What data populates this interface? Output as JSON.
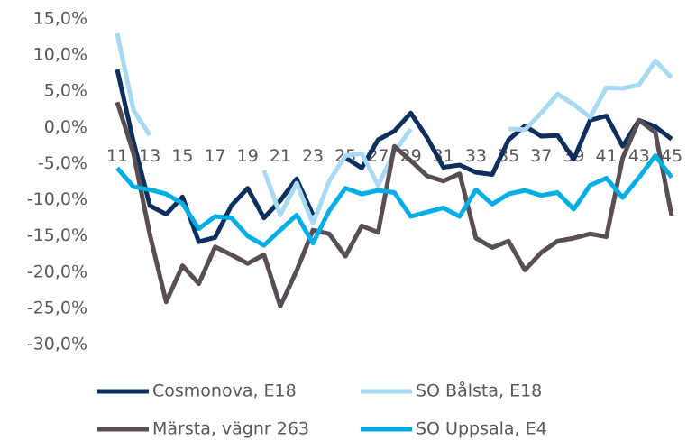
{
  "chart_data": {
    "type": "line",
    "categories": [
      "11",
      null,
      "13",
      null,
      "15",
      null,
      "17",
      null,
      "19",
      null,
      "21",
      null,
      "23",
      null,
      "25",
      null,
      "27",
      null,
      "29",
      null,
      "31",
      null,
      "33",
      null,
      "35",
      null,
      "37",
      null,
      "39",
      null,
      "41",
      null,
      "43",
      null,
      "45"
    ],
    "series": [
      {
        "name": "Cosmonova, E18",
        "color": "#0d2f5e",
        "values": [
          8.0,
          -2.0,
          -10.8,
          -12.0,
          -9.6,
          -15.8,
          -15.2,
          -10.8,
          -8.4,
          -12.5,
          -10.1,
          -7.1,
          -12.1,
          null,
          -4.2,
          -5.6,
          -1.7,
          -0.5,
          2.0,
          -1.4,
          -5.5,
          -5.2,
          -6.2,
          -6.5,
          -1.7,
          0.2,
          -1.2,
          -1.1,
          -4.4,
          1.0,
          1.6,
          -2.6,
          1.0,
          0.1,
          -1.6
        ]
      },
      {
        "name": "SO Bålsta, E18",
        "color": "#a8daf2",
        "values": [
          13.0,
          2.4,
          -1.1,
          null,
          null,
          null,
          null,
          null,
          null,
          -5.9,
          -12.1,
          -7.7,
          -13.3,
          -7.4,
          -3.9,
          -3.6,
          -8.0,
          -3.4,
          -0.2,
          null,
          null,
          null,
          null,
          null,
          -0.2,
          -0.3,
          2.0,
          4.6,
          3.2,
          1.4,
          5.5,
          5.4,
          5.9,
          9.2,
          6.9
        ]
      },
      {
        "name": "Märsta, vägnr 263",
        "color": "#594e56",
        "values": [
          3.5,
          -3.6,
          -14.8,
          -24.1,
          -19.1,
          -21.6,
          -16.5,
          -17.6,
          -18.8,
          -17.6,
          -24.7,
          -19.8,
          -14.2,
          -14.7,
          -17.8,
          -13.6,
          -14.5,
          -2.6,
          -4.6,
          -6.7,
          -7.4,
          -6.4,
          -15.3,
          -16.6,
          -15.7,
          -19.7,
          -17.3,
          -15.7,
          -15.3,
          -14.7,
          -15.1,
          -4.2,
          1.0,
          -0.7,
          -12.2
        ]
      },
      {
        "name": "SO Uppsala, E4",
        "color": "#00aee6",
        "values": [
          -5.6,
          -8.2,
          -8.6,
          -9.2,
          -10.5,
          -14.0,
          -12.3,
          -12.5,
          -15.0,
          -16.3,
          -14.2,
          -12.1,
          -16.0,
          -11.5,
          -8.4,
          -9.2,
          -8.7,
          -9.0,
          -12.3,
          -11.7,
          -11.1,
          -12.3,
          -8.6,
          -10.6,
          -9.2,
          -8.7,
          -9.4,
          -9.0,
          -11.3,
          -8.0,
          -7.0,
          -9.7,
          -6.9,
          -3.9,
          -6.9
        ]
      }
    ],
    "ylim": [
      -30,
      15
    ],
    "yticks": [
      {
        "value": -30,
        "label": "-30,0%"
      },
      {
        "value": -25,
        "label": "-25,0%"
      },
      {
        "value": -20,
        "label": "-20,0%"
      },
      {
        "value": -15,
        "label": "-15,0%"
      },
      {
        "value": -10,
        "label": "-10,0%"
      },
      {
        "value": -5,
        "label": "-5,0%"
      },
      {
        "value": 0,
        "label": "0,0%"
      },
      {
        "value": 5,
        "label": "5,0%"
      },
      {
        "value": 10,
        "label": "10,0%"
      },
      {
        "value": 15,
        "label": "15,0%"
      }
    ],
    "grid": false
  }
}
